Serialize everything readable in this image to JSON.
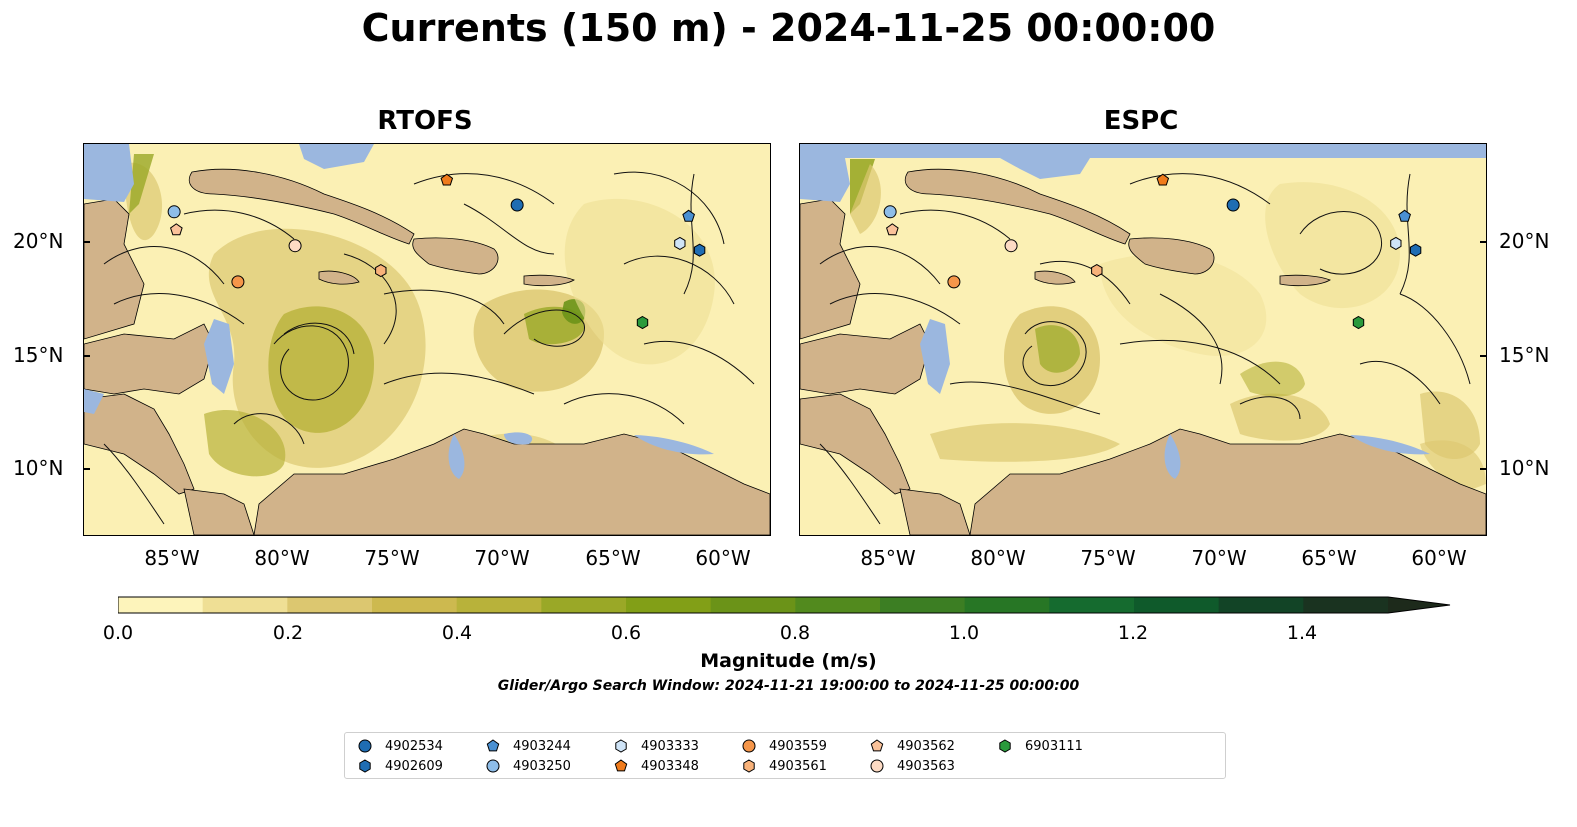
{
  "figure": {
    "title": "Currents (150 m) - 2024-11-25 00:00:00"
  },
  "panels": [
    {
      "title": "RTOFS"
    },
    {
      "title": "ESPC"
    }
  ],
  "axes": {
    "lat_labels": [
      "20°N",
      "15°N",
      "10°N"
    ],
    "lon_labels": [
      "85°W",
      "80°W",
      "75°W",
      "70°W",
      "65°W",
      "60°W"
    ]
  },
  "colorbar": {
    "label": "Magnitude (m/s)",
    "tick_labels": [
      "0.0",
      "0.2",
      "0.4",
      "0.6",
      "0.8",
      "1.0",
      "1.2",
      "1.4"
    ],
    "colors": [
      "#fdf4bb",
      "#efdf95",
      "#dcc770",
      "#cdb94f",
      "#b8b23a",
      "#9aa827",
      "#829f17",
      "#6b9318",
      "#528a1e",
      "#3c7e23",
      "#277625",
      "#156b2f",
      "#0f5a2b",
      "#124426",
      "#1a3320",
      "#1d2a1b"
    ],
    "extend": "max",
    "note": "Glider/Argo Search Window: 2024-11-21 19:00:00 to 2024-11-25 00:00:00"
  },
  "map_colors": {
    "ocean_slow": "#fbf0b4",
    "land": "#d1b38a",
    "water_masked": "#9bb7df"
  },
  "legend": {
    "entries": [
      {
        "id": "4902534",
        "marker": "circle",
        "color": "#1f6db3"
      },
      {
        "id": "4902609",
        "marker": "hexagon",
        "color": "#1f6db3"
      },
      {
        "id": "4903244",
        "marker": "pentagon",
        "color": "#4a90d2"
      },
      {
        "id": "4903250",
        "marker": "circle",
        "color": "#8ebde8"
      },
      {
        "id": "4903333",
        "marker": "hexagon",
        "color": "#cfe4f7"
      },
      {
        "id": "4903348",
        "marker": "pentagon",
        "color": "#f07b1c"
      },
      {
        "id": "4903559",
        "marker": "circle",
        "color": "#f5964a"
      },
      {
        "id": "4903561",
        "marker": "hexagon",
        "color": "#f8b27a"
      },
      {
        "id": "4903562",
        "marker": "pentagon",
        "color": "#fac29a"
      },
      {
        "id": "4903563",
        "marker": "circle",
        "color": "#fddbc4"
      },
      {
        "id": "6903111",
        "marker": "hexagon",
        "color": "#2a9a3c"
      }
    ]
  },
  "floats_on_map": [
    {
      "id": "4903250",
      "lon": -85.5,
      "lat": 21.4
    },
    {
      "id": "4903562",
      "lon": -85.4,
      "lat": 20.6
    },
    {
      "id": "4903563",
      "lon": -80.0,
      "lat": 19.9
    },
    {
      "id": "4903559",
      "lon": -82.6,
      "lat": 18.3
    },
    {
      "id": "4903561",
      "lon": -76.1,
      "lat": 18.8
    },
    {
      "id": "4903348",
      "lon": -73.1,
      "lat": 22.8
    },
    {
      "id": "4902534",
      "lon": -69.9,
      "lat": 21.7
    },
    {
      "id": "4903244",
      "lon": -62.1,
      "lat": 21.2
    },
    {
      "id": "4903333",
      "lon": -62.5,
      "lat": 20.0
    },
    {
      "id": "4902609",
      "lon": -61.6,
      "lat": 19.7
    },
    {
      "id": "6903111",
      "lon": -64.2,
      "lat": 16.5
    }
  ]
}
